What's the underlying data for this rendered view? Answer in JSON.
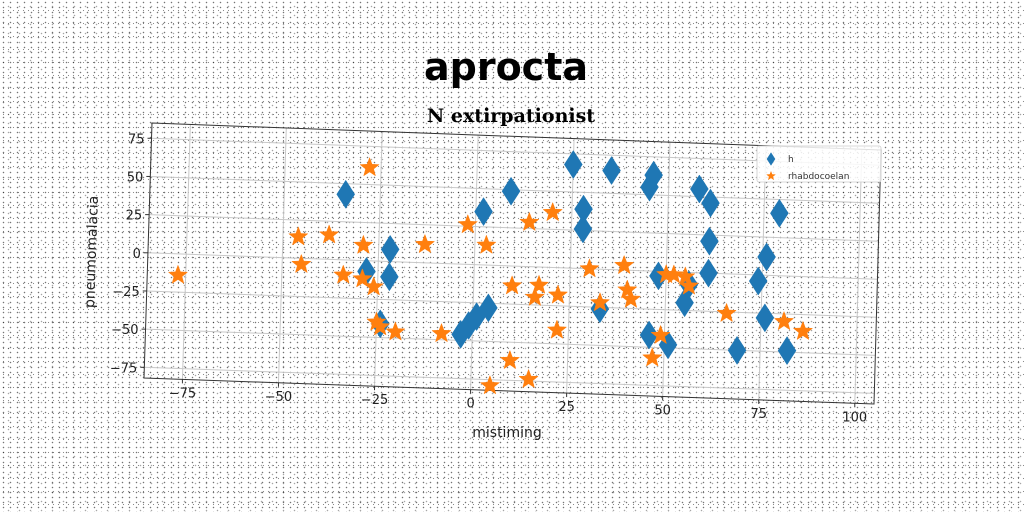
{
  "chart_data": {
    "type": "scatter",
    "title": "aprocta",
    "subtitle": "N extirpationist",
    "xlabel": "mistiming",
    "ylabel": "pneumomalacia",
    "xlim": [
      -85,
      105
    ],
    "ylim": [
      -82,
      85
    ],
    "xticks": [
      -75,
      -50,
      -25,
      0,
      25,
      50,
      75,
      100
    ],
    "xtick_labels": [
      "−75",
      "−50",
      "−25",
      "0",
      "25",
      "50",
      "75",
      "100"
    ],
    "yticks": [
      -75,
      -50,
      -25,
      0,
      25,
      50,
      75
    ],
    "ytick_labels": [
      "−75",
      "−50",
      "−25",
      "0",
      "25",
      "50",
      "75"
    ],
    "grid": true,
    "legend_position": "top-right",
    "series": [
      {
        "name": "h",
        "marker": "diamond",
        "color": "#1f77b4",
        "points": [
          [
            -34,
            43
          ],
          [
            -28,
            -7
          ],
          [
            -22,
            8
          ],
          [
            -22,
            -10
          ],
          [
            -24,
            -41
          ],
          [
            -3,
            -46
          ],
          [
            -1,
            -40
          ],
          [
            1,
            -34
          ],
          [
            2,
            35
          ],
          [
            4,
            -28
          ],
          [
            9,
            49
          ],
          [
            25,
            68
          ],
          [
            28,
            39
          ],
          [
            28,
            26
          ],
          [
            33,
            -26
          ],
          [
            35,
            65
          ],
          [
            45,
            55
          ],
          [
            46,
            63
          ],
          [
            46,
            -42
          ],
          [
            48,
            -3
          ],
          [
            51,
            -48
          ],
          [
            55,
            -20
          ],
          [
            56,
            -8
          ],
          [
            58,
            55
          ],
          [
            61,
            46
          ],
          [
            61,
            21
          ],
          [
            61,
            0
          ],
          [
            69,
            -50
          ],
          [
            74,
            -4
          ],
          [
            76,
            12
          ],
          [
            76,
            -28
          ],
          [
            79,
            41
          ],
          [
            82,
            -49
          ]
        ]
      },
      {
        "name": "rhabdocoelan",
        "marker": "star",
        "color": "#ff7f0e",
        "points": [
          [
            -77,
            -14
          ],
          [
            -46,
            14
          ],
          [
            -45,
            -4
          ],
          [
            -38,
            16
          ],
          [
            -34,
            -10
          ],
          [
            -29,
            -12
          ],
          [
            -29,
            10
          ],
          [
            -28,
            61
          ],
          [
            -26,
            -17
          ],
          [
            -25,
            -40
          ],
          [
            -24,
            -43
          ],
          [
            -20,
            -46
          ],
          [
            -13,
            12
          ],
          [
            -8,
            -46
          ],
          [
            -2,
            26
          ],
          [
            3,
            13
          ],
          [
            5,
            -79
          ],
          [
            10,
            -13
          ],
          [
            10,
            -62
          ],
          [
            14,
            29
          ],
          [
            15,
            -74
          ],
          [
            16,
            -20
          ],
          [
            17,
            -12
          ],
          [
            20,
            36
          ],
          [
            22,
            -41
          ],
          [
            22,
            -18
          ],
          [
            30,
            0
          ],
          [
            33,
            -22
          ],
          [
            39,
            3
          ],
          [
            40,
            -13
          ],
          [
            41,
            -19
          ],
          [
            47,
            -57
          ],
          [
            49,
            -42
          ],
          [
            50,
            -2
          ],
          [
            52,
            -2
          ],
          [
            55,
            -3
          ],
          [
            56,
            -9
          ],
          [
            66,
            -26
          ],
          [
            81,
            -30
          ],
          [
            86,
            -36
          ]
        ]
      }
    ]
  }
}
